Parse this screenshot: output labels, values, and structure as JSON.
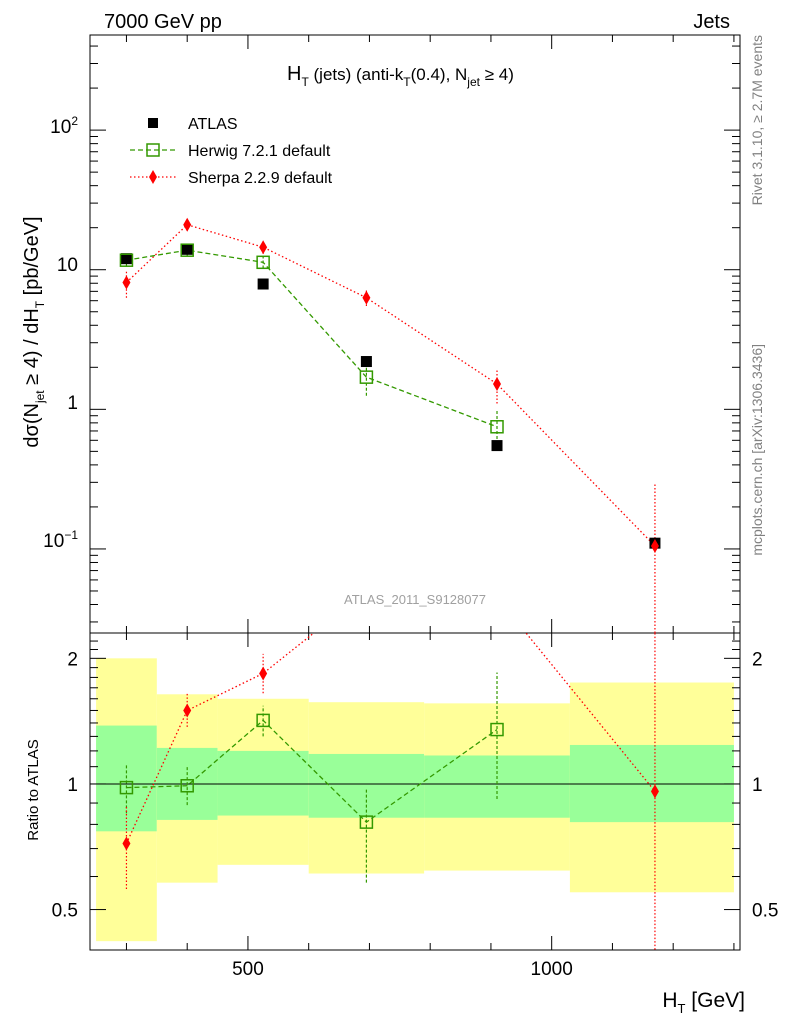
{
  "chart_data": {
    "type": "scatter",
    "header_left": "7000 GeV pp",
    "header_right": "Jets",
    "title_parts": {
      "H": "H",
      "T": "T",
      "mid": " (jets) (anti-k",
      "kT": "T",
      "cone": "(0.4), N",
      "jet": "jet",
      "cond": " ≥ 4)"
    },
    "ylabel_parts": {
      "a": "dσ(N",
      "jet": "jet",
      "b": " ≥ 4) / dH",
      "T": "T",
      "c": " [pb/GeV]"
    },
    "xlabel_parts": {
      "H": "H",
      "T": "T",
      "unit": " [GeV]"
    },
    "ratio_ylabel": "Ratio to ATLAS",
    "watermark": "ATLAS_2011_S9128077",
    "right_text_1": "Rivet 3.1.10, ≥ 2.7M events",
    "right_text_2": "mcplots.cern.ch [arXiv:1306.3436]",
    "xlim": [
      240,
      1310
    ],
    "ylim": [
      0.025,
      480
    ],
    "ratio_ylim": [
      0.4,
      2.3
    ],
    "x_ticks": [
      "500",
      "1000"
    ],
    "y_ticks": {
      "hundred_base": "10",
      "hundred_exp": "2",
      "ten": "10",
      "one": "1",
      "tenth_base": "10",
      "tenth_exp": "−1"
    },
    "ratio_ticks": [
      "0.5",
      "1",
      "2"
    ],
    "legend": {
      "atlas": "ATLAS",
      "herwig": "Herwig 7.2.1 default",
      "sherpa": "Sherpa 2.2.9 default"
    },
    "colors": {
      "atlas": "#000000",
      "herwig": "#339900",
      "sherpa": "#ff0000",
      "band_inner": "#99ff99",
      "band_outer": "#ffff99"
    },
    "bins": [
      {
        "lo": 250,
        "hi": 350,
        "inner": [
          0.77,
          1.38
        ],
        "outer": [
          0.42,
          2.0
        ]
      },
      {
        "lo": 350,
        "hi": 450,
        "inner": [
          0.82,
          1.22
        ],
        "outer": [
          0.58,
          1.64
        ]
      },
      {
        "lo": 450,
        "hi": 600,
        "inner": [
          0.84,
          1.2
        ],
        "outer": [
          0.64,
          1.6
        ]
      },
      {
        "lo": 600,
        "hi": 790,
        "inner": [
          0.83,
          1.18
        ],
        "outer": [
          0.61,
          1.57
        ]
      },
      {
        "lo": 790,
        "hi": 1030,
        "inner": [
          0.83,
          1.17
        ],
        "outer": [
          0.62,
          1.56
        ]
      },
      {
        "lo": 1030,
        "hi": 1300,
        "inner": [
          0.81,
          1.24
        ],
        "outer": [
          0.55,
          1.75
        ]
      }
    ],
    "series": [
      {
        "name": "ATLAS",
        "x": [
          300,
          400,
          525,
          695,
          910,
          1170
        ],
        "y": [
          12.0,
          14.0,
          7.9,
          2.2,
          0.55,
          0.11
        ]
      },
      {
        "name": "Herwig 7.2.1 default",
        "x": [
          300,
          400,
          525,
          695,
          910
        ],
        "y": [
          11.7,
          13.8,
          11.3,
          1.7,
          0.75
        ],
        "err_lo": [
          10.5,
          12.5,
          10.2,
          1.25,
          0.52
        ],
        "err_hi": [
          12.9,
          15.0,
          12.5,
          2.1,
          0.98
        ]
      },
      {
        "name": "Sherpa 2.2.9 default",
        "x": [
          300,
          400,
          525,
          695,
          910,
          1170
        ],
        "y": [
          8.1,
          21.0,
          14.5,
          6.3,
          1.52,
          0.105
        ],
        "err_lo": [
          6.3,
          19.0,
          13.0,
          5.5,
          1.1,
          0.0001
        ],
        "err_hi": [
          10.0,
          23.0,
          16.0,
          7.2,
          1.95,
          0.29
        ]
      }
    ],
    "ratio_series": [
      {
        "name": "Herwig 7.2.1 default",
        "x": [
          300,
          400,
          525,
          695,
          910
        ],
        "y": [
          0.98,
          0.99,
          1.42,
          0.81,
          1.35
        ],
        "err_lo": [
          0.85,
          0.89,
          1.3,
          0.58,
          0.92
        ],
        "err_hi": [
          1.12,
          1.1,
          1.54,
          0.97,
          1.85
        ]
      },
      {
        "name": "Sherpa 2.2.9 default",
        "x": [
          300,
          400,
          525,
          695,
          910,
          1170
        ],
        "y": [
          0.72,
          1.5,
          1.84,
          2.9,
          2.8,
          0.96
        ],
        "err_lo": [
          0.56,
          1.37,
          1.65,
          2.6,
          2.5,
          0.3
        ],
        "err_hi": [
          0.89,
          1.65,
          2.05,
          3.2,
          3.1,
          2.6
        ]
      }
    ]
  }
}
